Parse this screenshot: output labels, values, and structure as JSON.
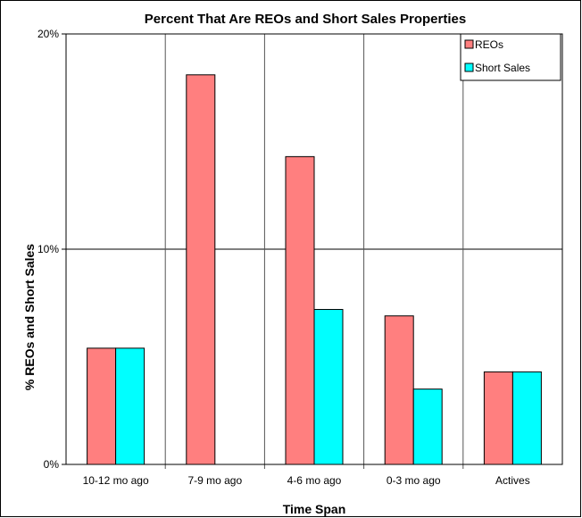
{
  "chart_data": {
    "type": "bar",
    "title": "Percent That Are REOs and Short Sales Properties",
    "xlabel": "Time Span",
    "ylabel": "% REOs and Short Sales",
    "categories": [
      "10-12 mo ago",
      "7-9 mo ago",
      "4-6 mo ago",
      "0-3 mo ago",
      "Actives"
    ],
    "series": [
      {
        "name": "REOs",
        "values": [
          5.4,
          18.1,
          14.3,
          6.9,
          4.3
        ],
        "color": "#ff7f7f"
      },
      {
        "name": "Short Sales",
        "values": [
          5.4,
          0,
          7.2,
          3.5,
          4.3
        ],
        "color": "#00ffff"
      }
    ],
    "ylim": [
      0,
      20
    ],
    "yticks": [
      0,
      10,
      20
    ],
    "ytick_labels": [
      "0%",
      "10%",
      "20%"
    ],
    "grid": {
      "horizontal": true,
      "vertical_category_separators": true
    },
    "legend_position": "top-right"
  }
}
